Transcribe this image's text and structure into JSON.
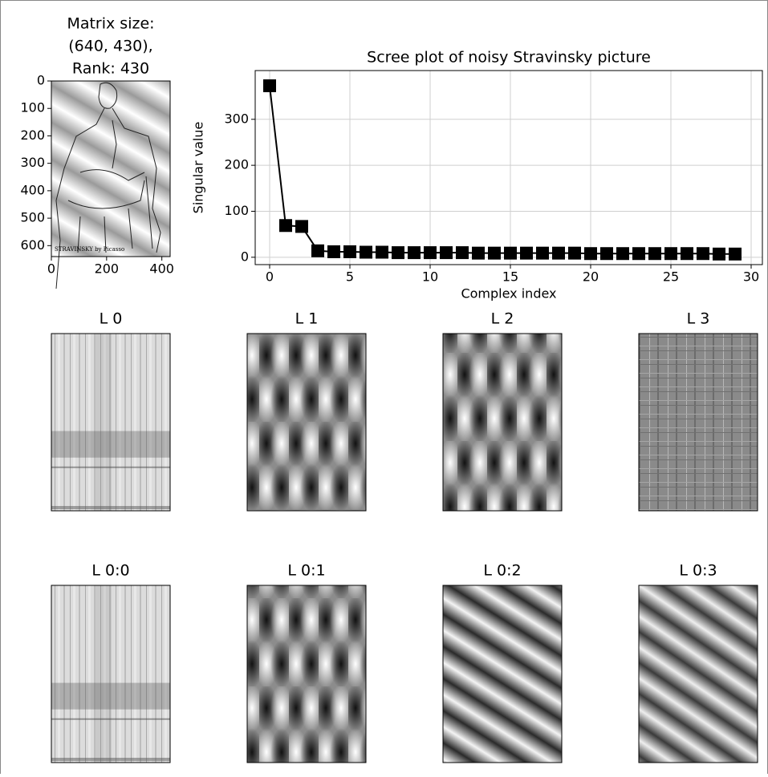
{
  "chart_data": [
    {
      "type": "image",
      "title": [
        "Matrix size:",
        "(640, 430),",
        "Rank: 430"
      ],
      "image_caption": "STRAVINSKY by Picasso",
      "xlim": [
        0,
        430
      ],
      "ylim": [
        640,
        0
      ],
      "xticks": [
        0,
        200,
        400
      ],
      "yticks": [
        0,
        100,
        200,
        300,
        400,
        500,
        600
      ]
    },
    {
      "type": "line",
      "title": "Scree plot of noisy Stravinsky picture",
      "x_label": "Complex index",
      "y_label": "Singular value",
      "x": [
        0,
        1,
        2,
        3,
        4,
        5,
        6,
        7,
        8,
        9,
        10,
        11,
        12,
        13,
        14,
        15,
        16,
        17,
        18,
        19,
        20,
        21,
        22,
        23,
        24,
        25,
        26,
        27,
        28,
        29
      ],
      "values": [
        373,
        69,
        67,
        14,
        12,
        12,
        11,
        11,
        10,
        10,
        10,
        10,
        10,
        9,
        9,
        9,
        9,
        9,
        9,
        9,
        8,
        8,
        8,
        8,
        8,
        8,
        8,
        8,
        7,
        7
      ],
      "color": "#000000",
      "marker": "square",
      "xlim": [
        -0.9,
        30.7
      ],
      "ylim": [
        -16,
        406
      ],
      "xticks": [
        0,
        5,
        10,
        15,
        20,
        25,
        30
      ],
      "yticks": [
        0,
        100,
        200,
        300
      ],
      "grid": true
    },
    {
      "type": "image",
      "title": "L 0"
    },
    {
      "type": "image",
      "title": "L 1"
    },
    {
      "type": "image",
      "title": "L 2"
    },
    {
      "type": "image",
      "title": "L 3"
    },
    {
      "type": "image",
      "title": "L 0:0"
    },
    {
      "type": "image",
      "title": "L 0:1"
    },
    {
      "type": "image",
      "title": "L 0:2"
    },
    {
      "type": "image",
      "title": "L 0:3"
    }
  ]
}
